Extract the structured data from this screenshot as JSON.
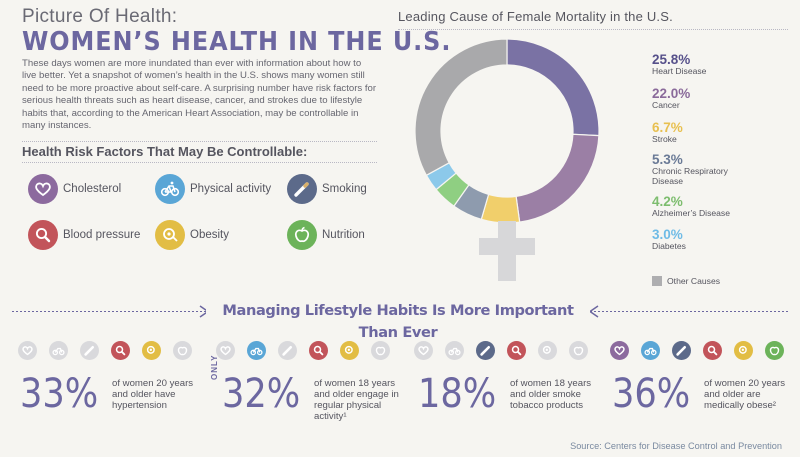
{
  "header": {
    "kicker": "Picture Of Health:",
    "title": "WOMEN’S HEALTH IN THE U.S.",
    "intro": "These days women are more inundated than ever with information about how to live better. Yet a snapshot of women’s health in the U.S. shows many women still need to be more proactive about self-care. A surprising number have risk factors for serious health threats such as heart disease, cancer, and strokes due to lifestyle habits that, according to the American Heart Association, may be controllable in many instances."
  },
  "risk_factors": {
    "heading": "Health Risk Factors That May Be Controllable:",
    "items": [
      {
        "label": "Cholesterol",
        "icon": "heart-icon",
        "color": "#8c6a9e"
      },
      {
        "label": "Physical activity",
        "icon": "bicycle-icon",
        "color": "#5aa6d6"
      },
      {
        "label": "Smoking",
        "icon": "cigarette-icon",
        "color": "#5c6a8a"
      },
      {
        "label": "Blood pressure",
        "icon": "magnifier-icon",
        "color": "#c2545a"
      },
      {
        "label": "Obesity",
        "icon": "tape-measure-icon",
        "color": "#e2bd44"
      },
      {
        "label": "Nutrition",
        "icon": "apple-icon",
        "color": "#6cb35a"
      }
    ]
  },
  "chart_data": {
    "type": "pie",
    "title": "Leading Cause of Female Mortality in the U.S.",
    "series": [
      {
        "name": "Heart Disease",
        "value": 25.8,
        "label": "25.8%",
        "color": "#7a72a4"
      },
      {
        "name": "Cancer",
        "value": 22.0,
        "label": "22.0%",
        "color": "#9b7fa5"
      },
      {
        "name": "Stroke",
        "value": 6.7,
        "label": "6.7%",
        "color": "#f1cf6b"
      },
      {
        "name": "Chronic Respiratory Disease",
        "value": 5.3,
        "label": "5.3%",
        "color": "#8e9bae"
      },
      {
        "name": "Alzheimer’s Disease",
        "value": 4.2,
        "label": "4.2%",
        "color": "#8fcf82"
      },
      {
        "name": "Diabetes",
        "value": 3.0,
        "label": "3.0%",
        "color": "#8cc9ea"
      },
      {
        "name": "Other Causes",
        "value": 33.0,
        "color": "#a9a9ab"
      }
    ],
    "legend_colors": {
      "Heart Disease": "#56508a",
      "Cancer": "#8a6a9a",
      "Stroke": "#e8c050",
      "Chronic Respiratory Disease": "#6a7a96",
      "Alzheimer’s Disease": "#7dbd6e",
      "Diabetes": "#6fbbe6"
    }
  },
  "lifestyle": {
    "banner": "Managing Lifestyle Habits Is More Important Than Ever",
    "groups": [
      {
        "pct": "33%",
        "text": "of women 20 years and older have hypertension",
        "active": [
          false,
          false,
          false,
          true,
          true,
          false
        ]
      },
      {
        "prefix": "ONLY",
        "pct": "32%",
        "text": "of women 18 years and older engage in regular physical activity¹",
        "active": [
          false,
          true,
          false,
          true,
          true,
          false
        ]
      },
      {
        "pct": "18%",
        "text": "of women 18 years and older smoke tobacco products",
        "active": [
          false,
          false,
          true,
          true,
          false,
          false
        ]
      },
      {
        "pct": "36%",
        "text": "of women 20 years and older are medically obese²",
        "active": [
          true,
          true,
          true,
          true,
          true,
          true
        ]
      }
    ]
  },
  "source": "Source: Centers for Disease Control and Prevention"
}
